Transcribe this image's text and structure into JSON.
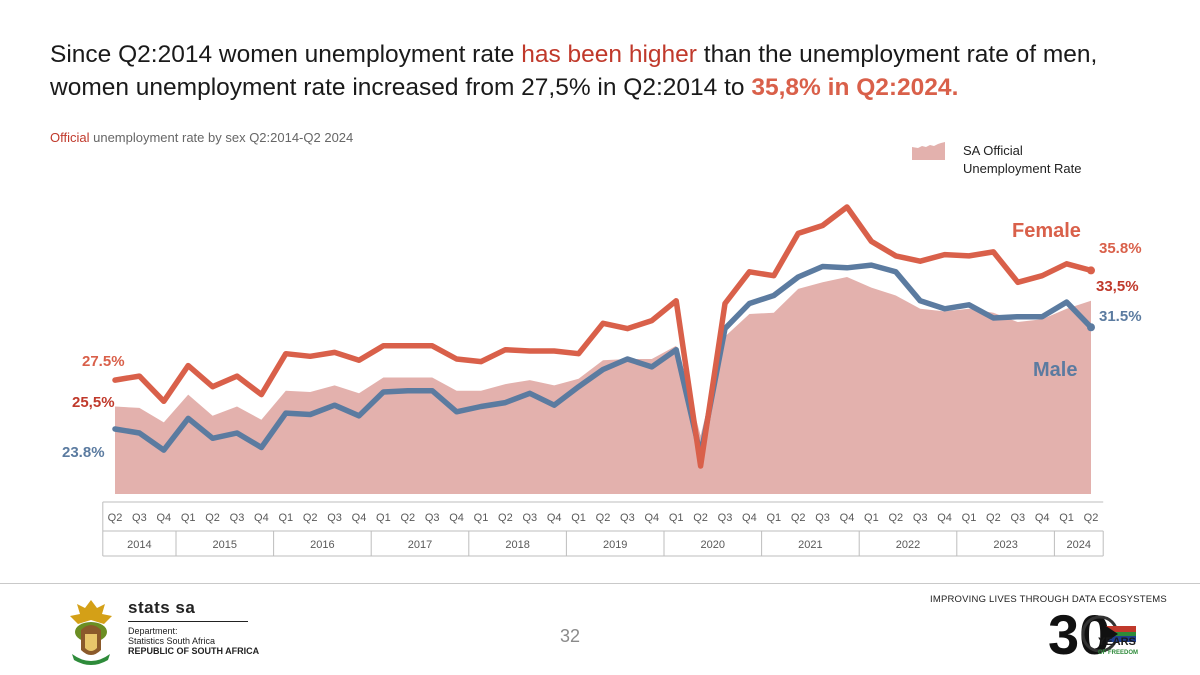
{
  "headline": {
    "part1": "Since Q2:2014 women unemployment rate ",
    "part2": "has been higher",
    "part3": " than the unemployment rate of men, women unemployment rate increased from 27,5% in Q2:2014 to ",
    "part4": "35,8% in Q2:2024",
    "part5": "."
  },
  "subtitle": {
    "highlight": "Official",
    "rest": " unemployment rate by sex Q2:2014-Q2 2024"
  },
  "legend": {
    "label_line1": "SA Official",
    "label_line2": "Unemployment Rate"
  },
  "chart_data": {
    "type": "line",
    "title": "",
    "quarters": [
      "Q2",
      "Q3",
      "Q4",
      "Q1",
      "Q2",
      "Q3",
      "Q4",
      "Q1",
      "Q2",
      "Q3",
      "Q4",
      "Q1",
      "Q2",
      "Q3",
      "Q4",
      "Q1",
      "Q2",
      "Q3",
      "Q4",
      "Q1",
      "Q2",
      "Q3",
      "Q4",
      "Q1",
      "Q2",
      "Q3",
      "Q4",
      "Q1",
      "Q2",
      "Q3",
      "Q4",
      "Q1",
      "Q2",
      "Q3",
      "Q4",
      "Q1",
      "Q2",
      "Q3",
      "Q4",
      "Q1",
      "Q2"
    ],
    "years": [
      {
        "label": "2014",
        "count": 3
      },
      {
        "label": "2015",
        "count": 4
      },
      {
        "label": "2016",
        "count": 4
      },
      {
        "label": "2017",
        "count": 4
      },
      {
        "label": "2018",
        "count": 4
      },
      {
        "label": "2019",
        "count": 4
      },
      {
        "label": "2020",
        "count": 4
      },
      {
        "label": "2021",
        "count": 4
      },
      {
        "label": "2022",
        "count": 4
      },
      {
        "label": "2023",
        "count": 4
      },
      {
        "label": "2024",
        "count": 2
      }
    ],
    "series": [
      {
        "name": "Female",
        "color": "#d9604a",
        "values": [
          27.5,
          27.8,
          25.9,
          28.6,
          27.0,
          27.8,
          26.4,
          29.5,
          29.3,
          29.6,
          29.0,
          30.1,
          30.1,
          30.1,
          29.1,
          28.9,
          29.8,
          29.7,
          29.7,
          29.5,
          31.8,
          31.4,
          32.0,
          33.5,
          21.0,
          33.3,
          35.7,
          35.4,
          38.6,
          39.2,
          40.6,
          38.0,
          36.9,
          36.5,
          37.0,
          36.9,
          37.2,
          34.9,
          35.4,
          36.3,
          35.8
        ]
      },
      {
        "name": "Male",
        "color": "#5b7ba0",
        "values": [
          23.8,
          23.5,
          22.2,
          24.6,
          23.1,
          23.5,
          22.4,
          25.0,
          24.9,
          25.6,
          24.8,
          26.6,
          26.7,
          26.7,
          25.1,
          25.5,
          25.8,
          26.5,
          25.6,
          27.0,
          28.3,
          29.1,
          28.5,
          29.8,
          21.8,
          31.4,
          33.3,
          33.9,
          35.3,
          36.1,
          36.0,
          36.2,
          35.7,
          33.5,
          32.9,
          33.2,
          32.2,
          32.3,
          32.3,
          33.4,
          31.5
        ]
      },
      {
        "name": "SA Official Unemployment Rate",
        "color": "#e3b1ad",
        "values": [
          25.5,
          25.4,
          24.3,
          26.4,
          24.8,
          25.5,
          24.5,
          26.7,
          26.6,
          27.1,
          26.5,
          27.7,
          27.7,
          27.7,
          26.7,
          26.7,
          27.2,
          27.5,
          27.1,
          27.6,
          29.0,
          29.1,
          29.1,
          30.1,
          23.3,
          30.8,
          32.5,
          32.6,
          34.4,
          34.9,
          35.3,
          34.5,
          33.9,
          32.9,
          32.7,
          32.9,
          32.6,
          31.9,
          32.1,
          32.9,
          33.5
        ]
      }
    ],
    "ylim": [
      17,
      42
    ],
    "annotations": {
      "female_label": "Female",
      "male_label": "Male",
      "female_start": "27.5%",
      "total_start": "25,5%",
      "male_start": "23.8%",
      "female_end": "35.8%",
      "total_end": "33,5%",
      "male_end": "31.5%"
    },
    "colors": {
      "female": "#d9604a",
      "male": "#5b7ba0",
      "area": "#e3b1ad",
      "dark_red": "#c0392b"
    }
  },
  "footer": {
    "page_number": "32",
    "stats_brand": "stats sa",
    "stats_line1": "Department:",
    "stats_line2": "Statistics South Africa",
    "stats_line3": "REPUBLIC OF SOUTH AFRICA",
    "tagline": "IMPROVING LIVES THROUGH DATA ECOSYSTEMS",
    "thirty": "30",
    "years_word": "YEARS",
    "freedom": "OF FREEDOM"
  }
}
